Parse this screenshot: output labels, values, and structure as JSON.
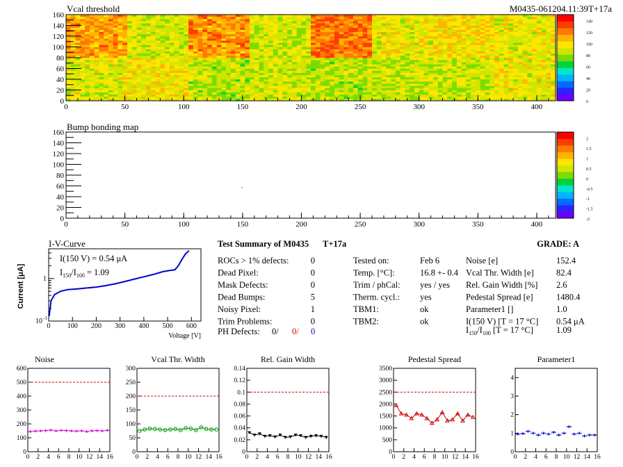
{
  "header": {
    "vcal_title": "Vcal threshold",
    "module_label": "M0435-061204.11:39T+17a",
    "bump_title": "Bump bonding map"
  },
  "vcal_map": {
    "x_ticks": [
      "0",
      "50",
      "100",
      "150",
      "200",
      "250",
      "300",
      "350",
      "400"
    ],
    "y_ticks": [
      "0",
      "20",
      "40",
      "60",
      "80",
      "100",
      "120",
      "140",
      "160"
    ],
    "xlim": [
      0,
      416
    ],
    "ylim": [
      0,
      160
    ],
    "palette_scale": [
      "0",
      "20",
      "40",
      "60",
      "80",
      "100",
      "120",
      "140"
    ],
    "roc_means": [
      [
        88,
        92,
        80,
        85,
        80,
        82,
        84,
        90
      ],
      [
        110,
        86,
        112,
        85,
        118,
        90,
        95,
        90
      ]
    ]
  },
  "bump_map": {
    "x_ticks": [
      "0",
      "50",
      "100",
      "150",
      "200",
      "250",
      "300",
      "350",
      "400"
    ],
    "y_ticks": [
      "0",
      "20",
      "40",
      "60",
      "80",
      "100",
      "120",
      "140",
      "160"
    ],
    "xlim": [
      0,
      416
    ],
    "ylim": [
      0,
      160
    ],
    "palette_scale": [
      "-2",
      "-1.5",
      "-1",
      "-0.5",
      "0",
      "0.5",
      "1",
      "1.5",
      "2"
    ],
    "points": [
      [
        149,
        58
      ]
    ]
  },
  "colors": {
    "palette": [
      "#6a00ff",
      "#2e22ff",
      "#006cff",
      "#00b4ff",
      "#00e6c8",
      "#00d23c",
      "#7cdc00",
      "#cfe600",
      "#ffe600",
      "#ffb400",
      "#ff7a00",
      "#ff3c00",
      "#ff0000"
    ]
  },
  "iv": {
    "title": "I-V-Curve",
    "ylabel": "Current [μA]",
    "xlabel": "Voltage [V]",
    "line1": "I(150 V) = 0.54 μA",
    "line2_prefix": "I",
    "line2_sub": "150",
    "line2_mid": "/I",
    "line2_sub2": "100",
    "line2_value": "=  1.09",
    "x_ticks": [
      "0",
      "100",
      "200",
      "300",
      "400",
      "500",
      "600"
    ],
    "y_ticks": [
      "10",
      "1"
    ],
    "y_tick_exp": "-1",
    "chart_data": {
      "type": "line",
      "xlim": [
        0,
        640
      ],
      "ylim_log": [
        0.1,
        5
      ],
      "x": [
        2,
        10,
        25,
        50,
        80,
        120,
        160,
        200,
        240,
        280,
        320,
        360,
        400,
        440,
        480,
        510,
        530,
        545,
        560,
        575,
        590
      ],
      "y": [
        0.13,
        0.3,
        0.42,
        0.5,
        0.55,
        0.57,
        0.6,
        0.63,
        0.68,
        0.75,
        0.85,
        0.97,
        1.1,
        1.25,
        1.45,
        1.55,
        1.6,
        2.0,
        2.8,
        3.8,
        4.5
      ],
      "color": "#0000cc"
    }
  },
  "summary": {
    "title": "Test Summary of M0435",
    "tag": "T+17a",
    "grade_label": "GRADE:  A",
    "left": [
      {
        "label": "ROCs > 1% defects:",
        "value": "0"
      },
      {
        "label": "Dead Pixel:",
        "value": "0"
      },
      {
        "label": "Mask Defects:",
        "value": "0"
      },
      {
        "label": "Dead Bumps:",
        "value": "5"
      },
      {
        "label": "Noisy Pixel:",
        "value": "1"
      },
      {
        "label": "Trim Problems:",
        "value": "0"
      }
    ],
    "ph_label": "PH Defects:",
    "ph_values": [
      "0/",
      "0/",
      "0"
    ],
    "middle": [
      {
        "label": "Tested on:",
        "value": "Feb 6"
      },
      {
        "label": "Temp. [°C]:",
        "value": "16.8 +- 0.4"
      },
      {
        "label": "Trim / phCal:",
        "value": "yes / yes"
      },
      {
        "label": "Therm. cycl.:",
        "value": "yes"
      },
      {
        "label": "TBM1:",
        "value": "ok"
      },
      {
        "label": "TBM2:",
        "value": "ok"
      }
    ],
    "right": [
      {
        "label": "Noise [e]",
        "value": "152.4"
      },
      {
        "label": "Vcal Thr. Width [e]",
        "value": "82.4"
      },
      {
        "label": "Rel. Gain Width [%]",
        "value": "2.6"
      },
      {
        "label": "Pedestal Spread [e]",
        "value": "1480.4"
      },
      {
        "label": "Parameter1 []",
        "value": "1.0"
      },
      {
        "label": "I(150 V) [T = 17 °C]",
        "value": "0.54 μA"
      }
    ],
    "ratio_label": "I",
    "ratio_sub1": "150",
    "ratio_mid": "/I",
    "ratio_sub2": "100",
    "ratio_tail": "  [T = 17 °C]",
    "ratio_value": "1.09"
  },
  "small_charts": [
    {
      "title": "Noise",
      "ylim": [
        0,
        600
      ],
      "y_ticks": [
        "0",
        "100",
        "200",
        "300",
        "400",
        "500",
        "600"
      ],
      "x_ticks": [
        "0",
        "2",
        "4",
        "6",
        "8",
        "10",
        "12",
        "14",
        "16"
      ],
      "ref": 500,
      "color": "#cc00cc",
      "marker": "plus",
      "chart_data": {
        "type": "scatter",
        "x": [
          0,
          1,
          2,
          3,
          4,
          5,
          6,
          7,
          8,
          9,
          10,
          11,
          12,
          13,
          14,
          15
        ],
        "y": [
          145,
          148,
          150,
          152,
          155,
          150,
          153,
          152,
          150,
          148,
          150,
          145,
          150,
          152,
          150,
          153
        ]
      }
    },
    {
      "title": "Vcal Thr. Width",
      "ylim": [
        0,
        300
      ],
      "y_ticks": [
        "0",
        "50",
        "100",
        "150",
        "200",
        "250",
        "300"
      ],
      "x_ticks": [
        "0",
        "2",
        "4",
        "6",
        "8",
        "10",
        "12",
        "14",
        "16"
      ],
      "ref": 200,
      "color": "#009900",
      "marker": "circle",
      "chart_data": {
        "type": "line",
        "x": [
          0,
          1,
          2,
          3,
          4,
          5,
          6,
          7,
          8,
          9,
          10,
          11,
          12,
          13,
          14,
          15
        ],
        "y": [
          75,
          80,
          83,
          82,
          80,
          78,
          80,
          82,
          78,
          85,
          83,
          78,
          88,
          82,
          80,
          80
        ]
      }
    },
    {
      "title": "Rel. Gain Width",
      "ylim": [
        0,
        0.14
      ],
      "y_ticks": [
        "0",
        "0.02",
        "0.04",
        "0.06",
        "0.08",
        "0.1",
        "0.12",
        "0.14"
      ],
      "x_ticks": [
        "0",
        "2",
        "4",
        "6",
        "8",
        "10",
        "12",
        "14",
        "16"
      ],
      "ref": 0.1,
      "color": "#000000",
      "marker": "triangle-down",
      "chart_data": {
        "type": "line",
        "x": [
          0,
          1,
          2,
          3,
          4,
          5,
          6,
          7,
          8,
          9,
          10,
          11,
          12,
          13,
          14,
          15
        ],
        "y": [
          0.032,
          0.028,
          0.03,
          0.026,
          0.027,
          0.025,
          0.028,
          0.024,
          0.025,
          0.028,
          0.027,
          0.024,
          0.026,
          0.027,
          0.026,
          0.024
        ]
      }
    },
    {
      "title": "Pedestal Spread",
      "ylim": [
        0,
        3500
      ],
      "y_ticks": [
        "0",
        "500",
        "1000",
        "1500",
        "2000",
        "2500",
        "3000",
        "3500"
      ],
      "x_ticks": [
        "0",
        "2",
        "4",
        "6",
        "8",
        "10",
        "12",
        "14",
        "16"
      ],
      "ref": 2500,
      "color": "#cc0000",
      "marker": "triangle-up",
      "chart_data": {
        "type": "line",
        "x": [
          0,
          1,
          2,
          3,
          4,
          5,
          6,
          7,
          8,
          9,
          10,
          11,
          12,
          13,
          14,
          15
        ],
        "y": [
          1950,
          1600,
          1550,
          1400,
          1600,
          1550,
          1400,
          1200,
          1350,
          1650,
          1300,
          1350,
          1600,
          1300,
          1550,
          1450
        ]
      }
    },
    {
      "title": "Parameter1",
      "ylim": [
        0,
        4.5
      ],
      "y_ticks": [
        "0",
        "1",
        "2",
        "3",
        "4"
      ],
      "x_ticks": [
        "0",
        "2",
        "4",
        "6",
        "8",
        "10",
        "12",
        "14",
        "16"
      ],
      "ref": null,
      "color": "#0000cc",
      "marker": "plus",
      "chart_data": {
        "type": "scatter",
        "x": [
          0,
          1,
          2,
          3,
          4,
          5,
          6,
          7,
          8,
          9,
          10,
          11,
          12,
          13,
          14,
          15
        ],
        "y": [
          0.95,
          0.98,
          1.1,
          1.0,
          0.9,
          1.0,
          0.95,
          1.05,
          0.9,
          1.0,
          1.35,
          0.95,
          1.0,
          0.85,
          0.9,
          0.9
        ]
      }
    }
  ]
}
